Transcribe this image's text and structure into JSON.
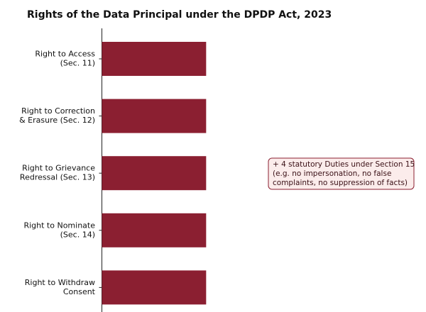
{
  "chart_data": {
    "type": "barh",
    "title": "Rights of the Data Principal under the DPDP Act, 2023",
    "categories": [
      "Right to Access\n(Sec. 11)",
      "Right to Correction\n& Erasure (Sec. 12)",
      "Right to Grievance\nRedressal (Sec. 13)",
      "Right to Nominate\n(Sec. 14)",
      "Right to Withdraw\nConsent"
    ],
    "values": [
      1,
      1,
      1,
      1,
      1
    ],
    "color": "#8b1f31",
    "xlim": [
      0,
      3
    ],
    "annotation": "+ 4 statutory Duties under Section 15\n(e.g. no impersonation, no false\ncomplaints, no suppression of facts)"
  }
}
